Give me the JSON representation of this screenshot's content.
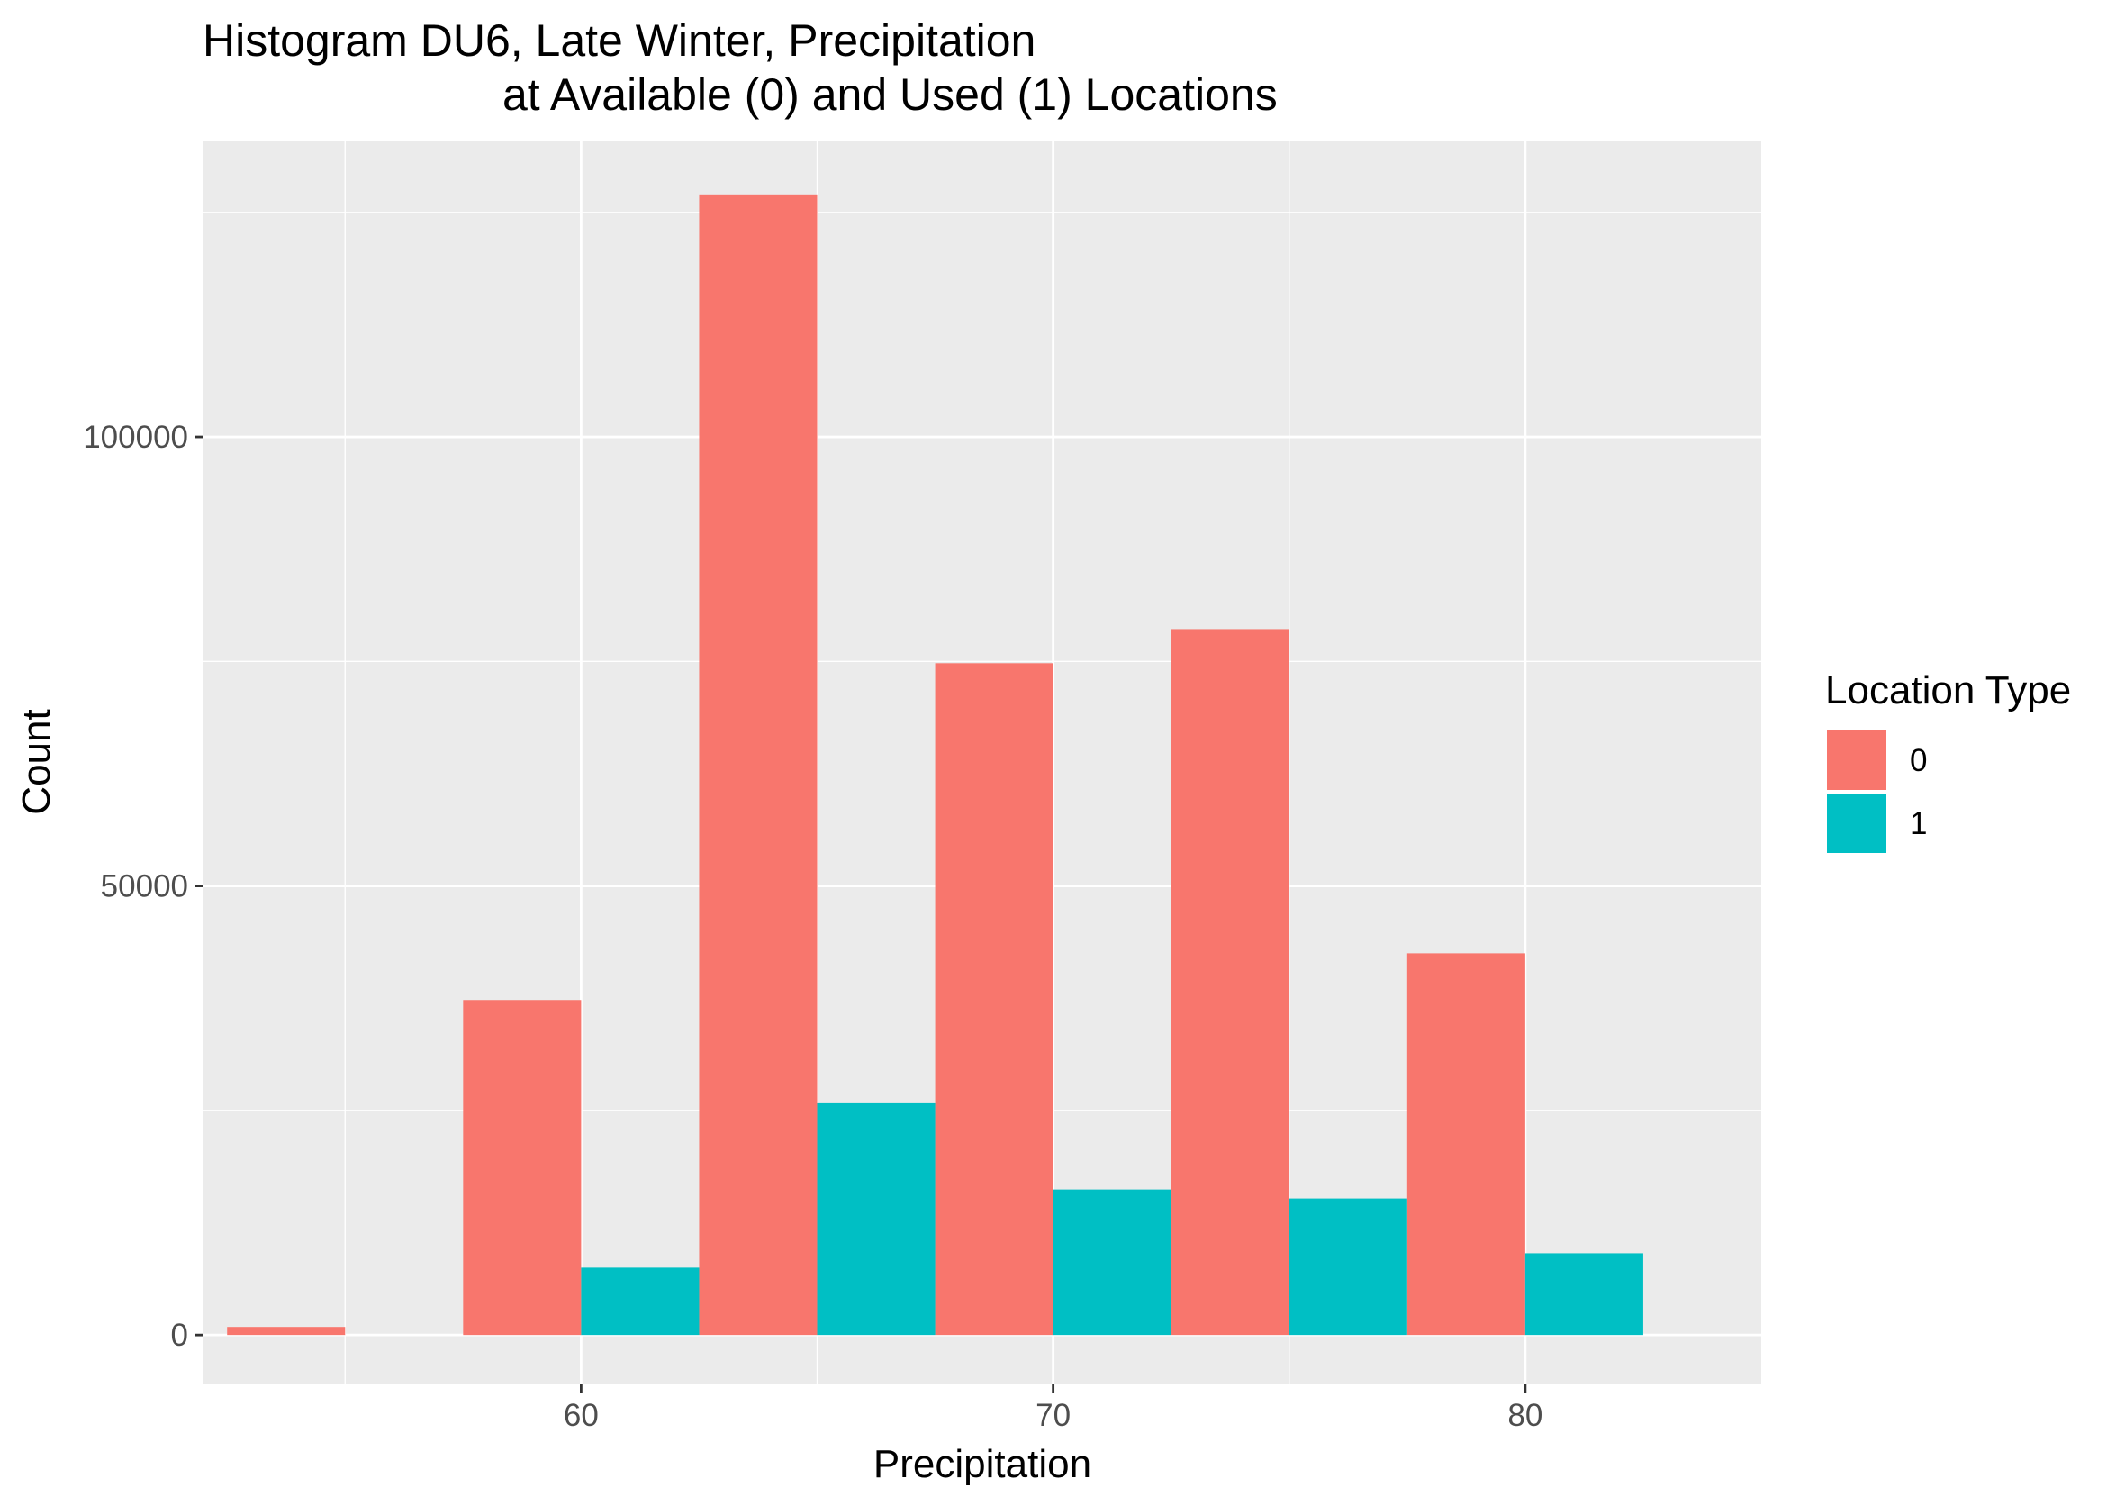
{
  "chart_data": {
    "type": "bar",
    "title_lines": [
      "Histogram DU6, Late Winter, Precipitation",
      "at Available (0) and Used (1) Locations"
    ],
    "xlabel": "Precipitation",
    "ylabel": "Count",
    "x_ticks": [
      60,
      70,
      80
    ],
    "y_ticks": [
      0,
      50000,
      100000
    ],
    "xlim": [
      52,
      85
    ],
    "ylim": [
      -5500,
      133000
    ],
    "bin_width": 5,
    "grid": true,
    "legend": {
      "title": "Location Type",
      "position": "right",
      "entries": [
        "0",
        "1"
      ]
    },
    "colors": {
      "0": "#F8766D",
      "1": "#00BFC4",
      "panel": "#EBEBEB",
      "grid": "#FFFFFF"
    },
    "series": [
      {
        "name": "0",
        "bins": [
          {
            "x_start": 52.5,
            "x_end": 55.0,
            "count": 900
          },
          {
            "x_start": 57.5,
            "x_end": 60.0,
            "count": 37300
          },
          {
            "x_start": 62.5,
            "x_end": 65.0,
            "count": 127000
          },
          {
            "x_start": 67.5,
            "x_end": 70.0,
            "count": 74800
          },
          {
            "x_start": 72.5,
            "x_end": 75.0,
            "count": 78600
          },
          {
            "x_start": 77.5,
            "x_end": 80.0,
            "count": 42500
          }
        ]
      },
      {
        "name": "1",
        "bins": [
          {
            "x_start": 55.0,
            "x_end": 57.5,
            "count": 0
          },
          {
            "x_start": 60.0,
            "x_end": 62.5,
            "count": 7500
          },
          {
            "x_start": 65.0,
            "x_end": 67.5,
            "count": 25800
          },
          {
            "x_start": 70.0,
            "x_end": 72.5,
            "count": 16200
          },
          {
            "x_start": 75.0,
            "x_end": 77.5,
            "count": 15200
          },
          {
            "x_start": 80.0,
            "x_end": 82.5,
            "count": 9100
          }
        ]
      }
    ]
  }
}
